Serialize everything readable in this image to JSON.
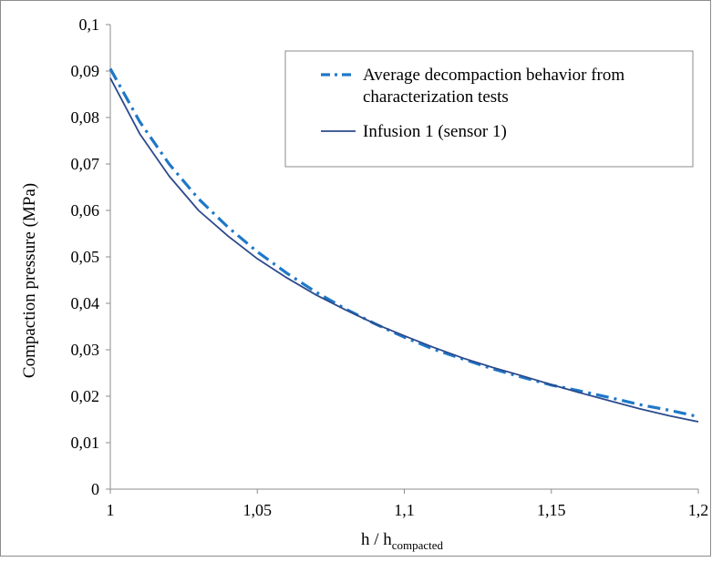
{
  "chart_data": {
    "type": "line",
    "title": "",
    "xlabel": "h / h",
    "xlabel_subscript": "compacted",
    "ylabel": "Compaction pressure (MPa)",
    "xlim": [
      1,
      1.2
    ],
    "ylim": [
      0,
      0.1
    ],
    "x_ticks": [
      {
        "value": 1,
        "label": "1"
      },
      {
        "value": 1.05,
        "label": "1,05"
      },
      {
        "value": 1.1,
        "label": "1,1"
      },
      {
        "value": 1.15,
        "label": "1,15"
      },
      {
        "value": 1.2,
        "label": "1,2"
      }
    ],
    "y_ticks": [
      {
        "value": 0,
        "label": "0"
      },
      {
        "value": 0.01,
        "label": "0,01"
      },
      {
        "value": 0.02,
        "label": "0,02"
      },
      {
        "value": 0.03,
        "label": "0,03"
      },
      {
        "value": 0.04,
        "label": "0,04"
      },
      {
        "value": 0.05,
        "label": "0,05"
      },
      {
        "value": 0.06,
        "label": "0,06"
      },
      {
        "value": 0.07,
        "label": "0,07"
      },
      {
        "value": 0.08,
        "label": "0,08"
      },
      {
        "value": 0.09,
        "label": "0,09"
      },
      {
        "value": 0.1,
        "label": "0,1"
      }
    ],
    "grid": false,
    "legend_position": "top-right",
    "series": [
      {
        "name": "Average decompaction behavior from characterization tests",
        "legend_lines": [
          "Average decompaction behavior from",
          "characterization tests"
        ],
        "color": "#1f78c8",
        "style": "dash-dot",
        "x": [
          1.0,
          1.01,
          1.02,
          1.03,
          1.04,
          1.05,
          1.06,
          1.07,
          1.08,
          1.09,
          1.1,
          1.11,
          1.12,
          1.13,
          1.14,
          1.15,
          1.16,
          1.17,
          1.18,
          1.19,
          1.2
        ],
        "y": [
          0.0905,
          0.0791,
          0.07,
          0.0625,
          0.0564,
          0.0511,
          0.0465,
          0.0424,
          0.0388,
          0.0356,
          0.0327,
          0.0301,
          0.028,
          0.0259,
          0.0241,
          0.0224,
          0.0211,
          0.0197,
          0.0182,
          0.017,
          0.0156
        ]
      },
      {
        "name": "Infusion 1 (sensor 1)",
        "legend_lines": [
          "Infusion 1 (sensor 1)"
        ],
        "color": "#2c4a8c",
        "style": "solid",
        "x": [
          1.0,
          1.01,
          1.02,
          1.03,
          1.04,
          1.05,
          1.06,
          1.07,
          1.08,
          1.09,
          1.1,
          1.11,
          1.12,
          1.13,
          1.14,
          1.15,
          1.16,
          1.17,
          1.18,
          1.19,
          1.2
        ],
        "y": [
          0.0885,
          0.0765,
          0.0674,
          0.06,
          0.0545,
          0.0496,
          0.0455,
          0.0418,
          0.0386,
          0.0356,
          0.033,
          0.0305,
          0.0282,
          0.0262,
          0.0244,
          0.0225,
          0.0207,
          0.019,
          0.0173,
          0.0158,
          0.0145
        ]
      }
    ]
  }
}
